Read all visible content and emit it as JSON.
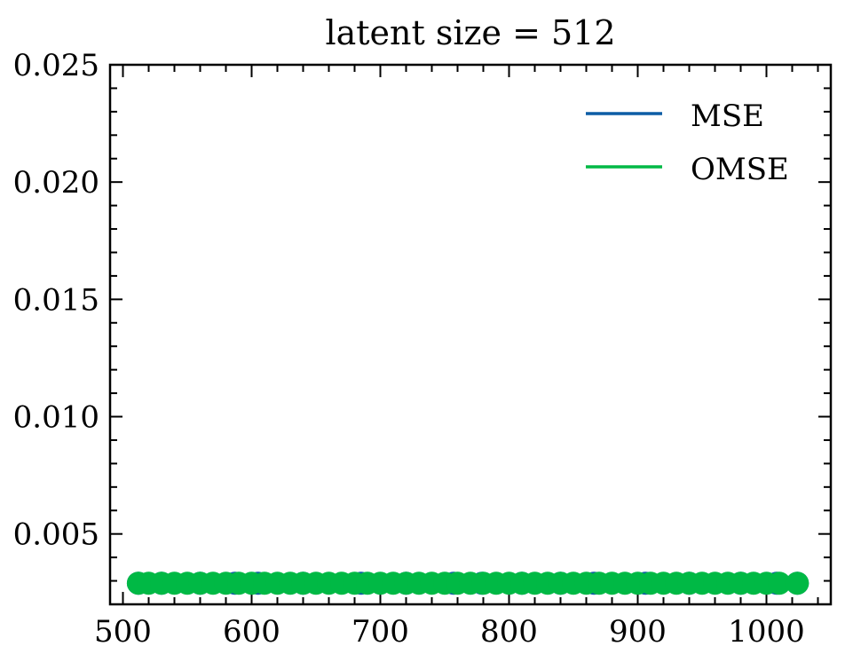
{
  "chart_data": {
    "type": "line",
    "title": "latent size = 512",
    "xlabel": "",
    "ylabel": "",
    "xlim": [
      490,
      1050
    ],
    "ylim": [
      0.002,
      0.025
    ],
    "x_ticks": [
      500,
      600,
      700,
      800,
      900,
      1000
    ],
    "x_tick_labels": [
      "500",
      "600",
      "700",
      "800",
      "900",
      "1000"
    ],
    "y_ticks": [
      0.005,
      0.01,
      0.015,
      0.02,
      0.025
    ],
    "y_tick_labels": [
      "0.005",
      "0.010",
      "0.015",
      "0.020",
      "0.025"
    ],
    "grid": false,
    "legend_position": "top-right",
    "series": [
      {
        "name": "MSE",
        "color": "#0C5DA5",
        "marker": "circle",
        "x": [
          512,
          530,
          560,
          587,
          605,
          640,
          685,
          720,
          757,
          779,
          810,
          840,
          866,
          906,
          940,
          980,
          1008,
          1024
        ],
        "y": [
          0.0029,
          0.0029,
          0.0029,
          0.0029,
          0.0029,
          0.0029,
          0.0029,
          0.0029,
          0.0029,
          0.0029,
          0.0029,
          0.0029,
          0.0029,
          0.0029,
          0.0029,
          0.0029,
          0.0029,
          0.0029
        ]
      },
      {
        "name": "OMSE",
        "color": "#00B945",
        "marker": "circle",
        "x": [
          512,
          520,
          530,
          540,
          550,
          560,
          570,
          580,
          590,
          600,
          610,
          620,
          630,
          640,
          650,
          660,
          670,
          680,
          690,
          700,
          710,
          720,
          730,
          740,
          750,
          760,
          770,
          780,
          790,
          800,
          810,
          820,
          830,
          840,
          850,
          860,
          870,
          880,
          890,
          900,
          910,
          920,
          930,
          940,
          950,
          960,
          970,
          980,
          990,
          1000,
          1010,
          1024
        ],
        "y": [
          0.0029,
          0.0029,
          0.0029,
          0.0029,
          0.0029,
          0.0029,
          0.0029,
          0.0029,
          0.0029,
          0.0029,
          0.0029,
          0.0029,
          0.0029,
          0.0029,
          0.0029,
          0.0029,
          0.0029,
          0.0029,
          0.0029,
          0.0029,
          0.0029,
          0.0029,
          0.0029,
          0.0029,
          0.0029,
          0.0029,
          0.0029,
          0.0029,
          0.0029,
          0.0029,
          0.0029,
          0.0029,
          0.0029,
          0.0029,
          0.0029,
          0.0029,
          0.0029,
          0.0029,
          0.0029,
          0.0029,
          0.0029,
          0.0029,
          0.0029,
          0.0029,
          0.0029,
          0.0029,
          0.0029,
          0.0029,
          0.0029,
          0.0029,
          0.0029,
          0.0029
        ]
      }
    ]
  }
}
